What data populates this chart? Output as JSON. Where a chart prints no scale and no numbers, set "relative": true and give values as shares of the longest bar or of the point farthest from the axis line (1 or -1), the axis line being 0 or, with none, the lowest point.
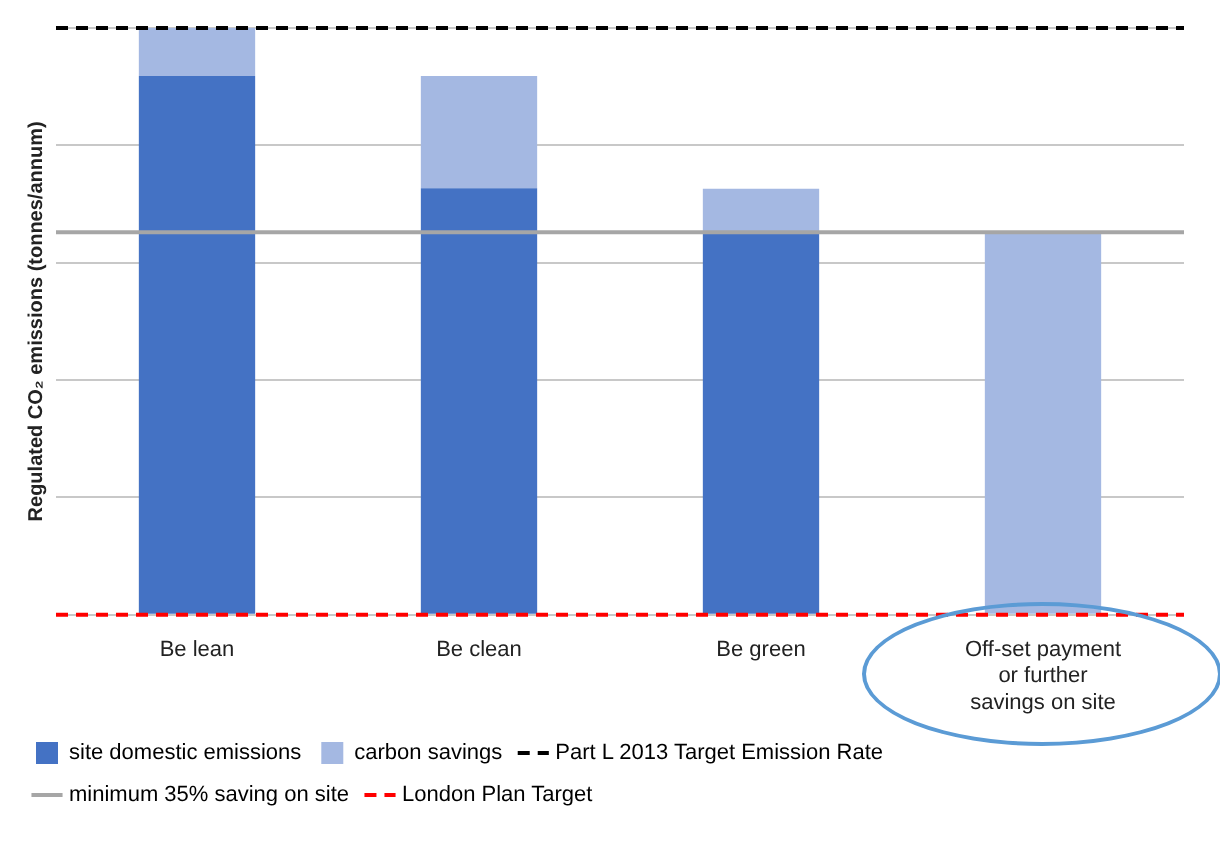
{
  "chart_data": {
    "type": "bar",
    "relative": true,
    "stacked": true,
    "ylabel": "Regulated CO₂ emissions (tonnes/annum)",
    "categories": [
      "Be lean",
      "Be clean",
      "Be green",
      "Off-set payment or further savings on site"
    ],
    "series": [
      {
        "name": "site domestic emissions",
        "color": "#4472c4",
        "values": [
          0.918,
          0.727,
          0.652,
          0
        ]
      },
      {
        "name": "carbon savings",
        "color": "#a4b8e2",
        "values": [
          0.082,
          0.191,
          0.074,
          0.652
        ]
      }
    ],
    "ref_lines": [
      {
        "axis": "y",
        "value": 1,
        "label": "Part L 2013 Target Emission Rate",
        "color": "#000000",
        "line_style": "dashed"
      },
      {
        "axis": "y",
        "value": 0.652,
        "label": "minimum 35% saving on site",
        "color": "#a6a6a6",
        "line_style": "solid"
      },
      {
        "axis": "y",
        "value": 0,
        "label": "London Plan Target",
        "color": "#ff0000",
        "line_style": "dashed"
      }
    ],
    "grid": "y",
    "legend": "bottom"
  }
}
